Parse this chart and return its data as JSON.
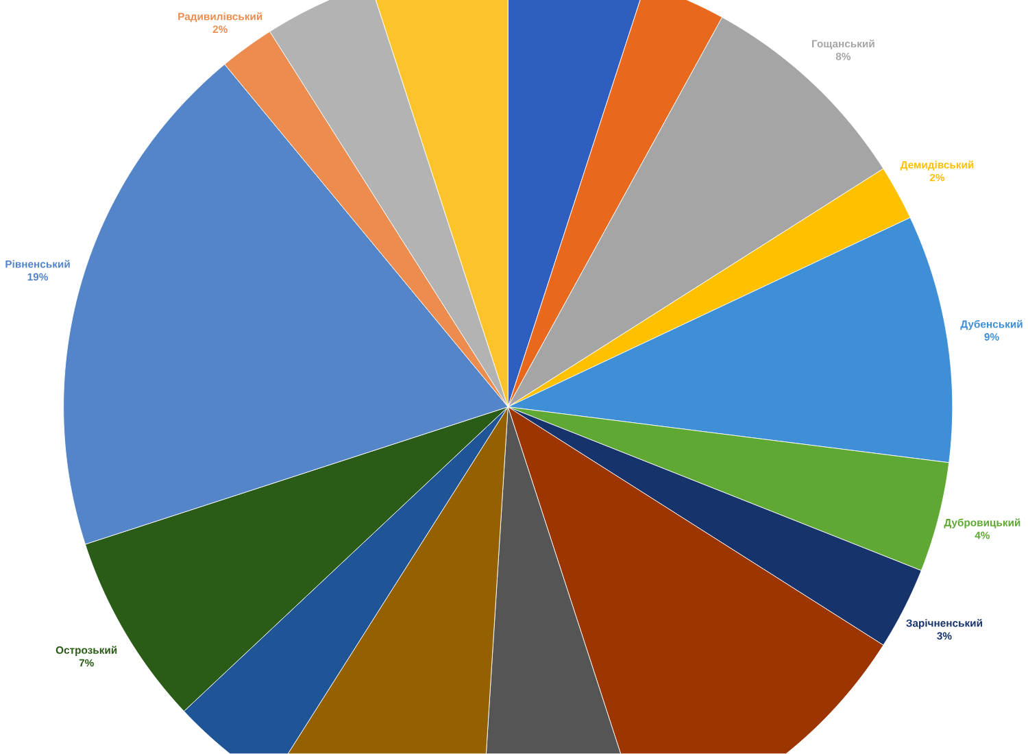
{
  "chart_data": {
    "type": "pie",
    "categories": [
      null,
      null,
      "Гощанський",
      "Демидівський",
      "Дубенський",
      "Дубровицький",
      "Зарічненський",
      null,
      null,
      null,
      null,
      "Острозький",
      "Рівненський",
      "Радивилівський",
      null,
      null
    ],
    "values": [
      5,
      3,
      8,
      2,
      9,
      4,
      3,
      11,
      6,
      8,
      4,
      7,
      19,
      2,
      4,
      5
    ],
    "value_labels": [
      null,
      null,
      "8%",
      "2%",
      "9%",
      "4%",
      "3%",
      null,
      null,
      null,
      null,
      "7%",
      "19%",
      "2%",
      null,
      null
    ],
    "colors": [
      "#2e5fc0",
      "#e8681e",
      "#a5a5a5",
      "#ffc000",
      "#3f8fd6",
      "#5fa833",
      "#17336b",
      "#9c3500",
      "#555555",
      "#946000",
      "#1f5597",
      "#2a5c18",
      "#5585c9",
      "#ec8c4f",
      "#b3b3b3",
      "#fcc42a"
    ]
  }
}
